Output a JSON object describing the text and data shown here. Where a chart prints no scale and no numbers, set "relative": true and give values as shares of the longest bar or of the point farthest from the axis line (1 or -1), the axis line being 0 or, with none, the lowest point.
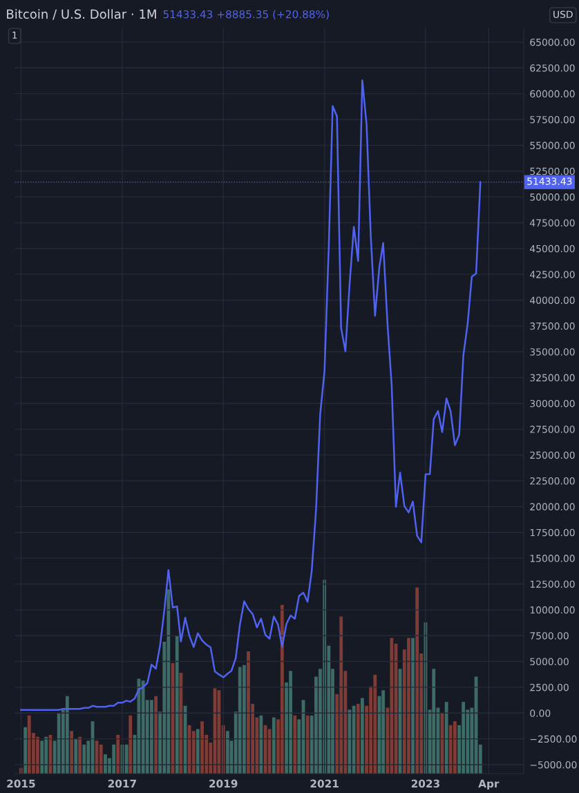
{
  "chart_data": [
    {
      "type": "line",
      "title": "Bitcoin / U.S. Dollar · 1M",
      "subtitle": "51433.43 +8885.35 (+20.88%)",
      "annotations": [
        "1",
        "USD"
      ],
      "series": [
        {
          "color": "#5062f0",
          "line_style": "solid",
          "x": [
            "2015-01",
            "2015-02",
            "2015-03",
            "2015-04",
            "2015-05",
            "2015-06",
            "2015-07",
            "2015-08",
            "2015-09",
            "2015-10",
            "2015-11",
            "2015-12",
            "2016-01",
            "2016-02",
            "2016-03",
            "2016-04",
            "2016-05",
            "2016-06",
            "2016-07",
            "2016-08",
            "2016-09",
            "2016-10",
            "2016-11",
            "2016-12",
            "2017-01",
            "2017-02",
            "2017-03",
            "2017-04",
            "2017-05",
            "2017-06",
            "2017-07",
            "2017-08",
            "2017-09",
            "2017-10",
            "2017-11",
            "2017-12",
            "2018-01",
            "2018-02",
            "2018-03",
            "2018-04",
            "2018-05",
            "2018-06",
            "2018-07",
            "2018-08",
            "2018-09",
            "2018-10",
            "2018-11",
            "2018-12",
            "2019-01",
            "2019-02",
            "2019-03",
            "2019-04",
            "2019-05",
            "2019-06",
            "2019-07",
            "2019-08",
            "2019-09",
            "2019-10",
            "2019-11",
            "2019-12",
            "2020-01",
            "2020-02",
            "2020-03",
            "2020-04",
            "2020-05",
            "2020-06",
            "2020-07",
            "2020-08",
            "2020-09",
            "2020-10",
            "2020-11",
            "2020-12",
            "2021-01",
            "2021-02",
            "2021-03",
            "2021-04",
            "2021-05",
            "2021-06",
            "2021-07",
            "2021-08",
            "2021-09",
            "2021-10",
            "2021-11",
            "2021-12",
            "2022-01",
            "2022-02",
            "2022-03",
            "2022-04",
            "2022-05",
            "2022-06",
            "2022-07",
            "2022-08",
            "2022-09",
            "2022-10",
            "2022-11",
            "2022-12",
            "2023-01",
            "2023-02",
            "2023-03",
            "2023-04",
            "2023-05",
            "2023-06",
            "2023-07",
            "2023-08",
            "2023-09",
            "2023-10",
            "2023-11",
            "2023-12",
            "2024-01",
            "2024-02"
          ],
          "values": [
            300,
            300,
            300,
            300,
            300,
            300,
            300,
            300,
            300,
            300,
            400,
            400,
            400,
            400,
            400,
            500,
            500,
            700,
            600,
            600,
            600,
            700,
            700,
            1000,
            1000,
            1200,
            1100,
            1400,
            2300,
            2500,
            2900,
            4700,
            4300,
            6500,
            9950,
            13860,
            10220,
            10330,
            6930,
            9240,
            7500,
            6400,
            7730,
            7030,
            6630,
            6370,
            4040,
            3740,
            3460,
            3820,
            4100,
            5320,
            8570,
            10820,
            10090,
            9590,
            8300,
            9150,
            7570,
            7200,
            9350,
            8540,
            6420,
            8630,
            9450,
            9140,
            11350,
            11660,
            10780,
            13800,
            19700,
            28990,
            33110,
            45240,
            58800,
            57800,
            37300,
            35040,
            41490,
            47100,
            43800,
            61300,
            57000,
            46300,
            38480,
            43180,
            45540,
            37700,
            31800,
            19980,
            23300,
            20050,
            19430,
            20490,
            17170,
            16540,
            23130,
            23150,
            28480,
            29250,
            27220,
            30480,
            29230,
            25940,
            26970,
            34640,
            37720,
            42280,
            42580,
            51433.43
          ]
        }
      ],
      "xlim": [
        "2014-11-20",
        "2024-12-10"
      ],
      "xticks": [
        {
          "value": "2015",
          "label": "2015"
        },
        {
          "value": "2017",
          "label": "2017"
        },
        {
          "value": "2019",
          "label": "2019"
        },
        {
          "value": "2021",
          "label": "2021"
        },
        {
          "value": "2023",
          "label": "2023"
        },
        {
          "value": "2024-04",
          "label": "Apr"
        }
      ],
      "ylim": [
        -5870,
        66400
      ],
      "yticks": [
        {
          "value": -5000,
          "label": "−5000.00"
        },
        {
          "value": -2500,
          "label": "−2500.00"
        },
        {
          "value": 0,
          "label": "0.00"
        },
        {
          "value": 2500,
          "label": "2500.00"
        },
        {
          "value": 5000,
          "label": "5000.00"
        },
        {
          "value": 7500,
          "label": "7500.00"
        },
        {
          "value": 10000,
          "label": "10000.00"
        },
        {
          "value": 12500,
          "label": "12500.00"
        },
        {
          "value": 15000,
          "label": "15000.00"
        },
        {
          "value": 17500,
          "label": "17500.00"
        },
        {
          "value": 20000,
          "label": "20000.00"
        },
        {
          "value": 22500,
          "label": "22500.00"
        },
        {
          "value": 25000,
          "label": "25000.00"
        },
        {
          "value": 27500,
          "label": "27500.00"
        },
        {
          "value": 30000,
          "label": "30000.00"
        },
        {
          "value": 32500,
          "label": "32500.00"
        },
        {
          "value": 35000,
          "label": "35000.00"
        },
        {
          "value": 37500,
          "label": "37500.00"
        },
        {
          "value": 40000,
          "label": "40000.00"
        },
        {
          "value": 42500,
          "label": "42500.00"
        },
        {
          "value": 45000,
          "label": "45000.00"
        },
        {
          "value": 47500,
          "label": "47500.00"
        },
        {
          "value": 50000,
          "label": "50000.00"
        },
        {
          "value": 52500,
          "label": "52500.00"
        },
        {
          "value": 55000,
          "label": "55000.00"
        },
        {
          "value": 57500,
          "label": "57500.00"
        },
        {
          "value": 60000,
          "label": "60000.00"
        },
        {
          "value": 62500,
          "label": "62500.00"
        },
        {
          "value": 65000,
          "label": "65000.00"
        }
      ],
      "ref_lines": [
        {
          "axis": "y",
          "value": 51433.43,
          "label": "51433.43",
          "color": "#5062f0",
          "line_style": "dotted"
        }
      ],
      "grid": true,
      "marker": "none"
    },
    {
      "type": "bar",
      "relative": true,
      "tick_labels": false,
      "x": [
        "2015-01",
        "2015-02",
        "2015-03",
        "2015-04",
        "2015-05",
        "2015-06",
        "2015-07",
        "2015-08",
        "2015-09",
        "2015-10",
        "2015-11",
        "2015-12",
        "2016-01",
        "2016-02",
        "2016-03",
        "2016-04",
        "2016-05",
        "2016-06",
        "2016-07",
        "2016-08",
        "2016-09",
        "2016-10",
        "2016-11",
        "2016-12",
        "2017-01",
        "2017-02",
        "2017-03",
        "2017-04",
        "2017-05",
        "2017-06",
        "2017-07",
        "2017-08",
        "2017-09",
        "2017-10",
        "2017-11",
        "2017-12",
        "2018-01",
        "2018-02",
        "2018-03",
        "2018-04",
        "2018-05",
        "2018-06",
        "2018-07",
        "2018-08",
        "2018-09",
        "2018-10",
        "2018-11",
        "2018-12",
        "2019-01",
        "2019-02",
        "2019-03",
        "2019-04",
        "2019-05",
        "2019-06",
        "2019-07",
        "2019-08",
        "2019-09",
        "2019-10",
        "2019-11",
        "2019-12",
        "2020-01",
        "2020-02",
        "2020-03",
        "2020-04",
        "2020-05",
        "2020-06",
        "2020-07",
        "2020-08",
        "2020-09",
        "2020-10",
        "2020-11",
        "2020-12",
        "2021-01",
        "2021-02",
        "2021-03",
        "2021-04",
        "2021-05",
        "2021-06",
        "2021-07",
        "2021-08",
        "2021-09",
        "2021-10",
        "2021-11",
        "2021-12",
        "2022-01",
        "2022-02",
        "2022-03",
        "2022-04",
        "2022-05",
        "2022-06",
        "2022-07",
        "2022-08",
        "2022-09",
        "2022-10",
        "2022-11",
        "2022-12",
        "2023-01",
        "2023-02",
        "2023-03",
        "2023-04",
        "2023-05",
        "2023-06",
        "2023-07",
        "2023-08",
        "2023-09",
        "2023-10",
        "2023-11",
        "2023-12",
        "2024-01",
        "2024-02"
      ],
      "values": [
        0.03,
        0.24,
        0.3,
        0.21,
        0.19,
        0.17,
        0.19,
        0.2,
        0.17,
        0.31,
        0.33,
        0.4,
        0.22,
        0.18,
        0.19,
        0.15,
        0.17,
        0.27,
        0.17,
        0.15,
        0.1,
        0.08,
        0.15,
        0.2,
        0.15,
        0.15,
        0.3,
        0.2,
        0.49,
        0.48,
        0.38,
        0.38,
        0.4,
        0.32,
        0.68,
        0.95,
        0.57,
        0.71,
        0.52,
        0.35,
        0.25,
        0.22,
        0.23,
        0.27,
        0.2,
        0.16,
        0.44,
        0.43,
        0.25,
        0.22,
        0.17,
        0.32,
        0.55,
        0.56,
        0.63,
        0.36,
        0.29,
        0.3,
        0.25,
        0.23,
        0.29,
        0.28,
        0.87,
        0.47,
        0.53,
        0.3,
        0.28,
        0.38,
        0.3,
        0.3,
        0.5,
        0.54,
        1,
        0.66,
        0.54,
        0.41,
        0.81,
        0.53,
        0.33,
        0.35,
        0.36,
        0.39,
        0.35,
        0.45,
        0.51,
        0.4,
        0.43,
        0.34,
        0.7,
        0.67,
        0.54,
        0.64,
        0.7,
        0.7,
        0.96,
        0.62,
        0.78,
        0.33,
        0.54,
        0.34,
        0.31,
        0.37,
        0.25,
        0.27,
        0.25,
        0.37,
        0.33,
        0.34,
        0.5,
        0.15
      ],
      "colors": [
        "#7f3b35",
        "#3d6b66",
        "#7f3b35",
        "#7f3b35",
        "#7f3b35",
        "#3d6b66",
        "#3d6b66",
        "#7f3b35",
        "#3d6b66",
        "#3d6b66",
        "#3d6b66",
        "#3d6b66",
        "#7f3b35",
        "#3d6b66",
        "#7f3b35",
        "#3d6b66",
        "#3d6b66",
        "#3d6b66",
        "#7f3b35",
        "#7f3b35",
        "#3d6b66",
        "#3d6b66",
        "#3d6b66",
        "#7f3b35",
        "#3d6b66",
        "#3d6b66",
        "#7f3b35",
        "#3d6b66",
        "#3d6b66",
        "#3d6b66",
        "#3d6b66",
        "#3d6b66",
        "#7f3b35",
        "#3d6b66",
        "#3d6b66",
        "#3d6b66",
        "#7f3b35",
        "#3d6b66",
        "#7f3b35",
        "#3d6b66",
        "#7f3b35",
        "#7f3b35",
        "#3d6b66",
        "#7f3b35",
        "#7f3b35",
        "#7f3b35",
        "#7f3b35",
        "#7f3b35",
        "#7f3b35",
        "#3d6b66",
        "#3d6b66",
        "#3d6b66",
        "#3d6b66",
        "#3d6b66",
        "#7f3b35",
        "#7f3b35",
        "#7f3b35",
        "#3d6b66",
        "#7f3b35",
        "#7f3b35",
        "#3d6b66",
        "#7f3b35",
        "#7f3b35",
        "#3d6b66",
        "#3d6b66",
        "#7f3b35",
        "#3d6b66",
        "#3d6b66",
        "#7f3b35",
        "#3d6b66",
        "#3d6b66",
        "#3d6b66",
        "#3d6b66",
        "#3d6b66",
        "#3d6b66",
        "#7f3b35",
        "#7f3b35",
        "#7f3b35",
        "#3d6b66",
        "#3d6b66",
        "#7f3b35",
        "#3d6b66",
        "#7f3b35",
        "#7f3b35",
        "#7f3b35",
        "#3d6b66",
        "#3d6b66",
        "#7f3b35",
        "#7f3b35",
        "#7f3b35",
        "#3d6b66",
        "#7f3b35",
        "#7f3b35",
        "#3d6b66",
        "#7f3b35",
        "#7f3b35",
        "#3d6b66",
        "#3d6b66",
        "#3d6b66",
        "#3d6b66",
        "#7f3b35",
        "#3d6b66",
        "#7f3b35",
        "#7f3b35",
        "#3d6b66",
        "#3d6b66",
        "#3d6b66",
        "#3d6b66",
        "#3d6b66",
        "#3d6b66"
      ],
      "xlim": [
        "2014-11-20",
        "2024-12-10"
      ]
    }
  ]
}
